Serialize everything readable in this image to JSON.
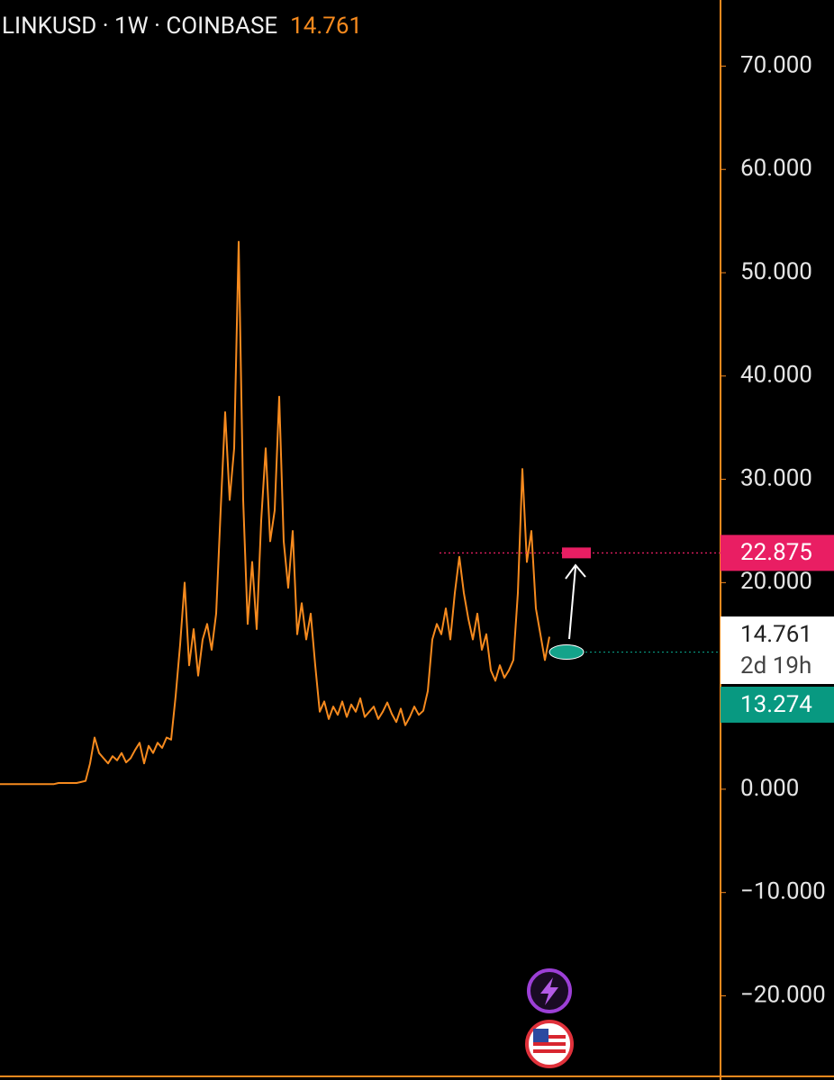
{
  "chart_data": {
    "type": "line",
    "title": "LINKUSD · 1W · COINBASE",
    "last_price": 14.761,
    "countdown": "2d 19h",
    "color": "#f68a1e",
    "values": [
      0.5,
      0.5,
      0.5,
      0.5,
      0.5,
      0.5,
      0.5,
      0.5,
      0.5,
      0.5,
      0.5,
      0.5,
      0.5,
      0.6,
      0.6,
      0.6,
      0.6,
      0.6,
      0.7,
      0.8,
      2.5,
      5.0,
      3.5,
      3.0,
      2.5,
      3.2,
      2.8,
      3.5,
      2.6,
      3.0,
      3.8,
      4.5,
      2.5,
      4.2,
      3.5,
      4.5,
      4.0,
      5.0,
      4.8,
      9.0,
      14.0,
      20.0,
      12.0,
      15.5,
      11.0,
      14.5,
      16.0,
      13.5,
      17.0,
      27.0,
      36.5,
      28.0,
      33.0,
      53.0,
      28.0,
      16.0,
      22.0,
      15.5,
      26.0,
      33.0,
      24.0,
      27.0,
      38.0,
      24.0,
      19.5,
      25.0,
      15.0,
      18.0,
      14.5,
      17.0,
      12.0,
      7.5,
      8.5,
      6.8,
      8.0,
      7.2,
      8.5,
      7.0,
      8.2,
      7.5,
      8.8,
      7.0,
      7.5,
      8.0,
      6.8,
      7.5,
      8.4,
      7.3,
      6.5,
      7.8,
      6.2,
      7.0,
      8.0,
      7.2,
      7.6,
      9.5,
      14.5,
      16.0,
      15.0,
      17.5,
      14.5,
      19.0,
      22.5,
      19.0,
      16.5,
      14.5,
      17.0,
      13.5,
      15.0,
      11.5,
      10.5,
      12.0,
      10.8,
      11.5,
      12.5,
      19.0,
      31.0,
      22.0,
      25.0,
      17.5,
      15.0,
      12.5,
      14.761
    ],
    "ylim": [
      -27.8,
      76.4
    ],
    "yticks": [
      {
        "value": 70,
        "label": "70.000"
      },
      {
        "value": 60,
        "label": "60.000"
      },
      {
        "value": 50,
        "label": "50.000"
      },
      {
        "value": 40,
        "label": "40.000"
      },
      {
        "value": 30,
        "label": "30.000"
      },
      {
        "value": 20,
        "label": "20.000"
      },
      {
        "value": 0,
        "label": "0.000"
      },
      {
        "value": -10,
        "label": "−10.000"
      },
      {
        "value": -20,
        "label": "−20.000"
      }
    ],
    "levels": [
      {
        "value": 22.875,
        "color": "#e91e63"
      },
      {
        "value": 13.274,
        "color": "#089981"
      }
    ]
  }
}
